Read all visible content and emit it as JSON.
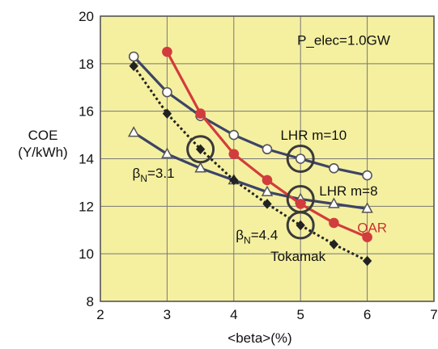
{
  "chart_data": {
    "type": "line",
    "xlabel": "<beta>(%)",
    "ylabel_line1": "COE",
    "ylabel_line2": "(Y/kWh)",
    "xlim": [
      2,
      7
    ],
    "ylim": [
      8,
      20
    ],
    "xticks": [
      2,
      3,
      4,
      5,
      6,
      7
    ],
    "yticks": [
      8,
      10,
      12,
      14,
      16,
      18,
      20
    ],
    "grid": true,
    "background_color": "#f5f0a0",
    "series": [
      {
        "name": "LHR m=10",
        "color": "#3d4466",
        "marker": "open-circle",
        "marker_fill": "#ffffff",
        "marker_stroke": "#555555",
        "linestyle": "solid",
        "x": [
          2.5,
          3,
          3.5,
          4,
          4.5,
          5,
          5.5,
          6
        ],
        "y": [
          18.3,
          16.8,
          15.8,
          15.0,
          14.4,
          14.0,
          13.6,
          13.3
        ]
      },
      {
        "name": "LHR m=8",
        "color": "#3d4466",
        "marker": "open-triangle",
        "marker_fill": "#ffffff",
        "marker_stroke": "#555555",
        "linestyle": "solid",
        "x": [
          2.5,
          3,
          3.5,
          4,
          4.5,
          5,
          5.5,
          6
        ],
        "y": [
          15.1,
          14.2,
          13.6,
          13.1,
          12.6,
          12.3,
          12.1,
          11.9
        ]
      },
      {
        "name": "QAR",
        "color": "#d23c3c",
        "marker": "filled-circle",
        "marker_fill": "#d23c3c",
        "marker_stroke": "#d23c3c",
        "linestyle": "solid",
        "x": [
          3,
          3.5,
          4,
          4.5,
          5,
          5.5,
          6
        ],
        "y": [
          18.5,
          15.9,
          14.2,
          13.1,
          12.1,
          11.3,
          10.7
        ]
      },
      {
        "name": "Tokamak",
        "color": "#222222",
        "marker": "filled-diamond",
        "marker_fill": "#222222",
        "marker_stroke": "#222222",
        "linestyle": "dotted",
        "x": [
          2.5,
          3,
          3.5,
          4,
          4.5,
          5,
          5.5,
          6
        ],
        "y": [
          17.9,
          15.9,
          14.4,
          13.1,
          12.1,
          11.2,
          10.4,
          9.7
        ]
      }
    ],
    "highlight_circles": [
      {
        "x": 3.5,
        "y": 14.4
      },
      {
        "x": 5,
        "y": 14.0
      },
      {
        "x": 5,
        "y": 12.3
      },
      {
        "x": 5,
        "y": 11.2
      }
    ],
    "annotations": [
      {
        "text": "P_elec=1.0GW",
        "x": 4.95,
        "y": 18.8,
        "color": "#111111"
      },
      {
        "text": "LHR m=10",
        "x": 4.7,
        "y": 14.8,
        "color": "#111111"
      },
      {
        "text": "LHR m=8",
        "x": 5.28,
        "y": 12.45,
        "color": "#111111"
      },
      {
        "text": "QAR",
        "x": 5.85,
        "y": 10.9,
        "color": "#cc3333"
      },
      {
        "text": "Tokamak",
        "x": 4.55,
        "y": 9.7,
        "color": "#111111"
      },
      {
        "text": "β",
        "sub": "N",
        "rest": "=3.1",
        "x": 2.48,
        "y": 13.2,
        "color": "#111111"
      },
      {
        "text": "β",
        "sub": "N",
        "rest": "=4.4",
        "x": 4.03,
        "y": 10.6,
        "color": "#111111"
      }
    ]
  }
}
